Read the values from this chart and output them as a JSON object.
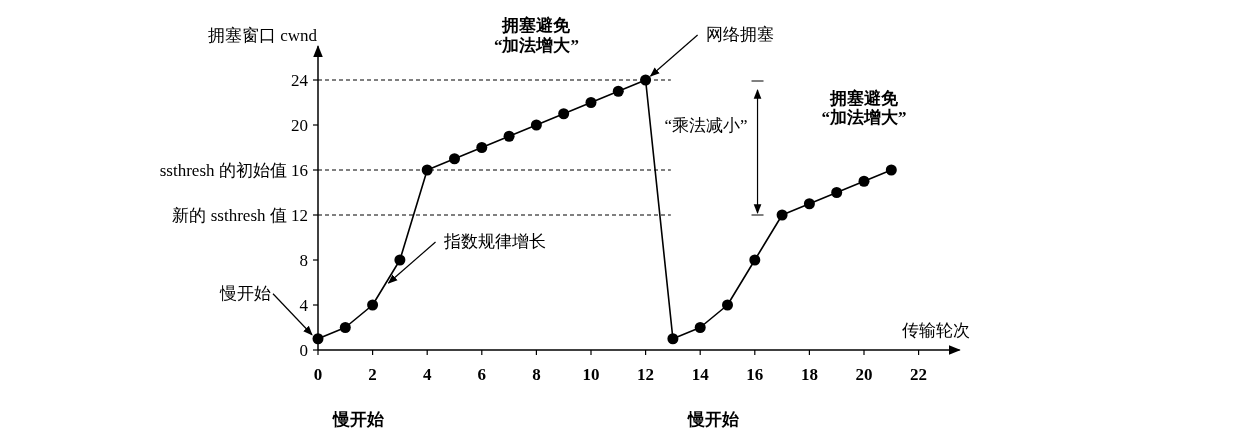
{
  "chart_data": {
    "type": "line",
    "xlabel": "传输轮次",
    "ylabel": "拥塞窗口 cwnd",
    "x": [
      0,
      1,
      2,
      3,
      4,
      5,
      6,
      7,
      8,
      9,
      10,
      11,
      12,
      13,
      14,
      15,
      16,
      17,
      18,
      19,
      20,
      21
    ],
    "series": [
      {
        "color": "#000000",
        "values": [
          1,
          2,
          4,
          8,
          16,
          17,
          18,
          19,
          20,
          21,
          22,
          23,
          24,
          1,
          2,
          4,
          8,
          12,
          13,
          14,
          15,
          16
        ]
      }
    ],
    "xlim": [
      0,
      23.5
    ],
    "ylim": [
      0,
      27
    ],
    "xticks": [
      0,
      2,
      4,
      6,
      8,
      10,
      12,
      14,
      16,
      18,
      20,
      22
    ],
    "yticks": [
      0,
      4,
      8,
      {
        "value": 12,
        "label": "新的 ssthresh 值 12"
      },
      {
        "value": 16,
        "label": "ssthresh 的初始值 16"
      },
      20,
      24
    ],
    "ref_lines": [
      {
        "axis": "y",
        "value": 24,
        "line_style": "dashed"
      },
      {
        "axis": "y",
        "value": 16,
        "line_style": "dashed"
      },
      {
        "axis": "y",
        "value": 12,
        "line_style": "dashed"
      }
    ],
    "annotations": [
      "拥塞避免\n“加法增大”",
      {
        "text": "网络拥塞",
        "x": 12,
        "y": 24
      },
      "“乘法减小”",
      "拥塞避免\n“加法增大”",
      {
        "text": "慢开始",
        "x": 0,
        "y": 1
      },
      {
        "text": "指数规律增长",
        "x": 2.4,
        "y": 5.6
      },
      "慢开始",
      "慢开始"
    ],
    "grid": false,
    "marker": "circle",
    "line_style": "solid"
  }
}
